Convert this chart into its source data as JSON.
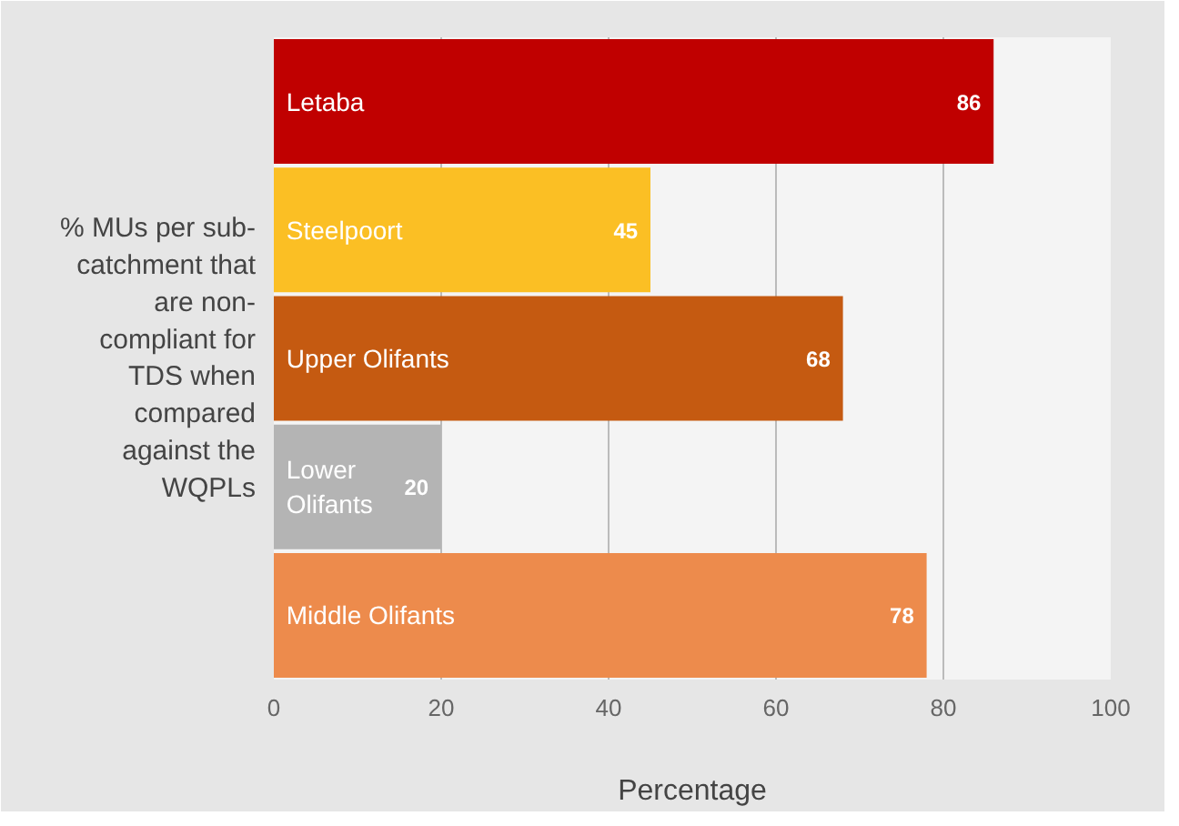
{
  "chart_data": {
    "type": "bar",
    "orientation": "horizontal",
    "ylabel": "% MUs per sub-catchment that are non-compliant for TDS when compared against the WQPLs",
    "xlabel": "Percentage",
    "categories": [
      "Letaba",
      "Steelpoort",
      "Upper Olifants",
      "Lower Olifants",
      "Middle Olifants"
    ],
    "values": [
      86,
      45,
      68,
      20,
      78
    ],
    "colors": [
      "#c00000",
      "#fbbf24",
      "#c55a11",
      "#b4b4b4",
      "#ed8b4c"
    ],
    "xlim": [
      0,
      100
    ],
    "xticks": [
      0,
      20,
      40,
      60,
      80,
      100
    ],
    "grid": "x",
    "data_labels": true
  }
}
